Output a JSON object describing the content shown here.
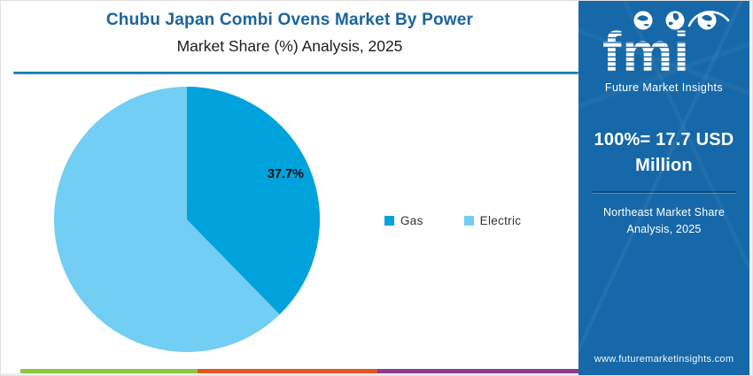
{
  "header": {
    "title": "Chubu Japan Combi Ovens Market By Power",
    "subtitle": "Market Share (%) Analysis, 2025"
  },
  "chart_data": {
    "type": "pie",
    "title": "Chubu Japan Combi Ovens Market By Power",
    "subtitle": "Market Share (%) Analysis, 2025",
    "start_angle_deg": 0,
    "direction": "clockwise",
    "legend_position": "right-middle",
    "slices": [
      {
        "label": "Gas",
        "value": 37.7,
        "data_label": "37.7%",
        "color": "#00a2dc"
      },
      {
        "label": "Electric",
        "value": 62.3,
        "data_label": "",
        "color": "#72cef2"
      }
    ]
  },
  "sidebar": {
    "background": "#1668a8",
    "logo": {
      "brand": "fmi",
      "caption": "Future Market Insights"
    },
    "headline": "100%= 17.7 USD Million",
    "subheadline": "Northeast Market Share Analysis, 2025",
    "website": "www.futuremarketinsights.com"
  },
  "footer_bar": {
    "colors": [
      "#8dc63f",
      "#e2571f",
      "#8e3b8e"
    ]
  }
}
